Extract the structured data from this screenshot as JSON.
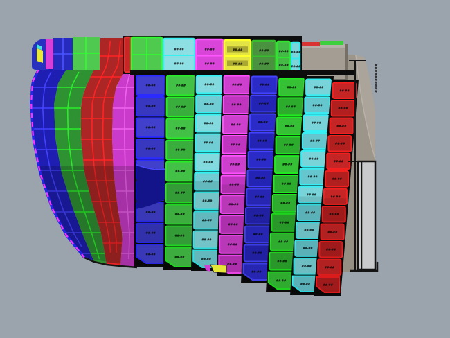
{
  "scene": {
    "type": "3d-cad-viewport",
    "description": "Ship hull plating model, color-coded plate strakes with part-number labels",
    "background": "#9ba3ac"
  },
  "labels": {
    "plate_label": "##-##",
    "top_plate_label": "##-##",
    "vertical_edge_text": "##########",
    "note": "plate part-number labels are illegible at source resolution"
  },
  "bow": {
    "edge_stroke": "#2424e8",
    "edge_dash": "#ff35ff",
    "keel_stroke": "#151515",
    "bands": [
      {
        "name": "bow-strake-blue",
        "fill": "#1e1eb2",
        "grid": "#4343ff"
      },
      {
        "name": "bow-strake-green",
        "fill": "#2f9232",
        "grid": "#2bee2b"
      },
      {
        "name": "bow-strake-red",
        "fill": "#ac2626",
        "grid": "#ff2424"
      },
      {
        "name": "bow-strake-magenta",
        "fill": "#cb3bcb",
        "grid": "#ef64ef"
      }
    ],
    "top_plates": {
      "corner_blue": "#2830c0",
      "corner_yellow": "#e8e838",
      "corner_cyan": "#45e2e2",
      "sliver_magenta": "#d83fd8",
      "plate_blue": "#262bbe",
      "plate_blue_grid": "#4a55ff",
      "plate_green": "#4fc94f",
      "plate_green_grid": "#2fff2f"
    }
  },
  "top_row": {
    "plates": [
      {
        "name": "deck-plate-red-sliver",
        "fill": "#c62626",
        "stroke": "#e83030",
        "labels": 0
      },
      {
        "name": "deck-plate-green-grid",
        "fill": "#4fca4f",
        "stroke": "#2fff2f",
        "labels": 0
      },
      {
        "name": "deck-plate-cyan",
        "fill": "#8edfe3",
        "stroke": "#38f0f0",
        "labels": 2
      },
      {
        "name": "deck-plate-magenta",
        "fill": "#d845d8",
        "stroke": "#ff55ff",
        "labels": 2
      },
      {
        "name": "deck-plate-yellow",
        "fill": "#e3e344",
        "stroke": "#ffff2e",
        "labels": 2,
        "label_strip": "#a8a832"
      },
      {
        "name": "deck-plate-dark-green",
        "fill": "#4a9140",
        "stroke": "#37bd2e",
        "labels": 2
      },
      {
        "name": "deck-plate-green-small",
        "fill": "#44bb44",
        "stroke": "#2fe62f",
        "labels": 2
      },
      {
        "name": "deck-plate-cyan-small",
        "fill": "#7cd3d8",
        "stroke": "#35eaea",
        "labels": 2
      }
    ]
  },
  "strakes": [
    {
      "name": "strake-1-blue",
      "plates": 9,
      "fill": "#4040cc",
      "fill_alt": "#3737bf",
      "stroke": "#2b2bff"
    },
    {
      "name": "strake-2-green",
      "plates": 9,
      "fill": "#43c146",
      "fill_alt": "#39ae3d",
      "stroke": "#26ee26"
    },
    {
      "name": "strake-3-cyan",
      "plates": 10,
      "fill": "#82dade",
      "fill_alt": "#6fcdd3",
      "stroke": "#30f2f2"
    },
    {
      "name": "strake-4-magenta",
      "plates": 10,
      "fill": "#cd3fcd",
      "fill_alt": "#c035c0",
      "stroke": "#ff4fff"
    },
    {
      "name": "strake-5-dark-blue",
      "plates": 11,
      "fill": "#2b2bc8",
      "fill_alt": "#2424b4",
      "stroke": "#4343ff"
    },
    {
      "name": "strake-6-green",
      "plates": 11,
      "fill": "#35c035",
      "fill_alt": "#2dab2d",
      "stroke": "#22ea22"
    },
    {
      "name": "strake-7-cyan",
      "plates": 12,
      "fill": "#79d4da",
      "fill_alt": "#66c6cd",
      "stroke": "#35eff4"
    },
    {
      "name": "strake-8-red",
      "plates": 12,
      "fill": "#c62525",
      "fill_alt": "#b21f1f",
      "stroke": "#f32020"
    }
  ],
  "transom": {
    "slab_fill": "#9c958a",
    "slab_light": "#aaa49a",
    "slab_dark": "#8f887d",
    "block_fill": "#a39d93",
    "block_top": "#b6b1a8",
    "block_edge": "#756f66",
    "panel_fill": "#c9cacb",
    "wire": "#141414"
  },
  "accents": {
    "deck_red": "#d93333",
    "deck_green": "#3ecf3e",
    "dot_magenta": "#e040e0",
    "dot_blue": "#3535e0",
    "wedge_yellow": "#e6e636",
    "tip_magenta": "#d040d0",
    "s1_dark_plate": "#14148a",
    "s1_dark_edge": "#4848ff"
  }
}
